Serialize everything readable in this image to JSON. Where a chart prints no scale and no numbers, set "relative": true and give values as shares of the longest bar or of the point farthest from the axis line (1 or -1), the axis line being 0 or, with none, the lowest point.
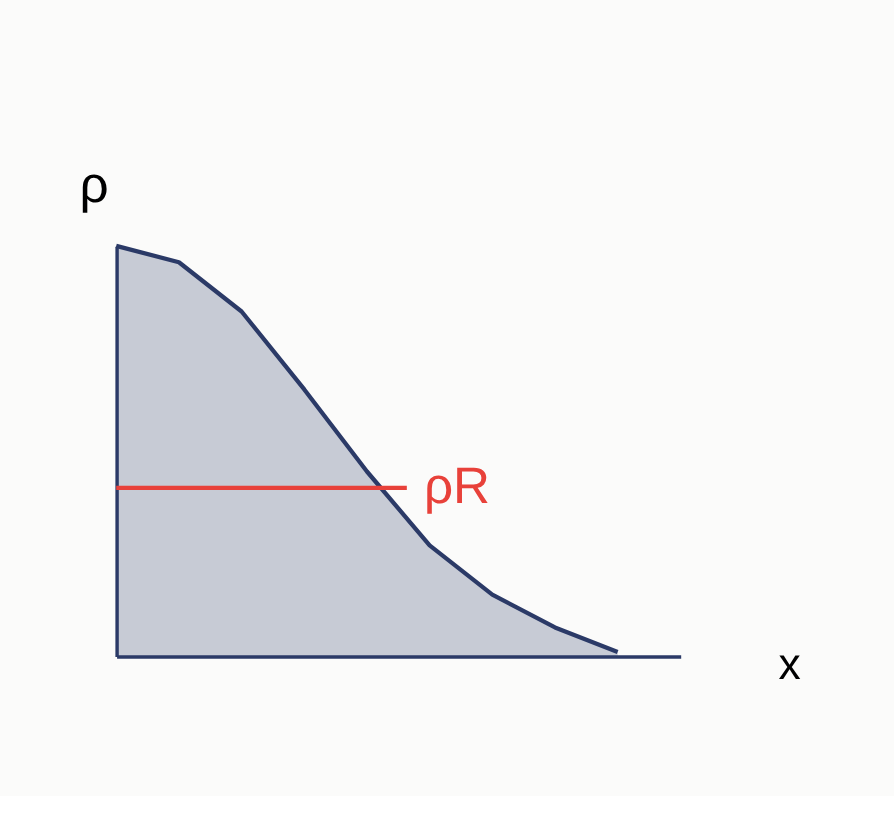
{
  "chart_data": {
    "type": "area",
    "relative": true,
    "ylabel": "ρ",
    "xlabel": "x",
    "categories": [
      null,
      null,
      null,
      null,
      null,
      null,
      null,
      null,
      null,
      null
    ],
    "series": [
      {
        "color": "#2b3a67",
        "values": [
          1.0,
          0.96,
          0.84,
          0.65,
          0.45,
          0.27,
          0.15,
          0.07,
          0.01,
          null
        ]
      }
    ],
    "ref_lines": [
      {
        "axis": "y",
        "value": 0.41,
        "label": "ρR",
        "color": "#e8413a"
      }
    ],
    "grid": false,
    "tick_labels": false
  }
}
